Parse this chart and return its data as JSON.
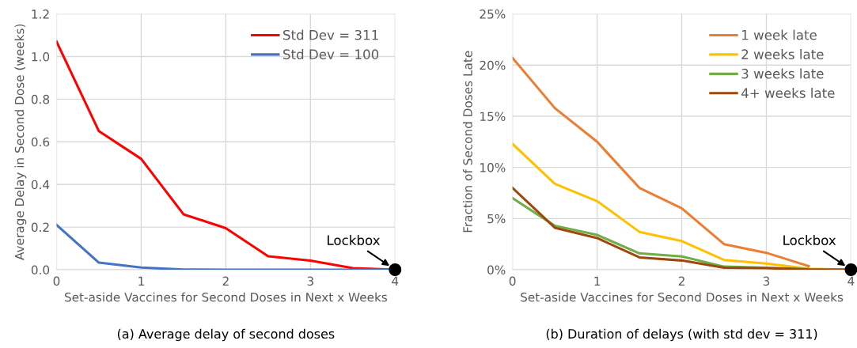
{
  "chart_data": [
    {
      "type": "line",
      "xlabel": "Set-aside Vaccines for Second Doses in Next x Weeks",
      "ylabel": "Average Delay in Second Dose (weeks)",
      "x": [
        0,
        0.5,
        1,
        1.5,
        2,
        2.5,
        3,
        3.5,
        4
      ],
      "series": [
        {
          "name": "Std Dev = 311",
          "color": "#ff0000",
          "values": [
            1.07,
            0.65,
            0.52,
            0.26,
            0.195,
            0.063,
            0.043,
            0.007,
            0.0
          ]
        },
        {
          "name": "Std Dev = 100",
          "color": "#4472c4",
          "values": [
            0.21,
            0.033,
            0.01,
            0.001,
            0.0,
            0.0,
            0.0,
            0.0,
            0.0
          ]
        },
        {
          "type": "scatter",
          "color": "#000000",
          "x": [
            4
          ],
          "values": [
            0.0
          ]
        }
      ],
      "xlim": [
        0,
        4
      ],
      "xticks": [
        0,
        1,
        2,
        3,
        4
      ],
      "ylim": [
        0,
        1.2
      ],
      "yticks": [
        {
          "value": 0,
          "label": "0.0"
        },
        0.2,
        0.4,
        0.6,
        0.8,
        {
          "value": 1,
          "label": "1.0"
        },
        1.2
      ],
      "grid": true,
      "legend": "top right",
      "line_style": "solid",
      "annotations": [
        {
          "text": "Lockbox",
          "x": 4,
          "y": 0
        },
        "(a) Average delay of second doses"
      ]
    },
    {
      "type": "line",
      "xlabel": "Set-aside Vaccines for Second Doses in Next x Weeks",
      "ylabel": "Fraction of Second Doses Late",
      "x": [
        0,
        0.5,
        1,
        1.5,
        2,
        2.5,
        3,
        3.5,
        4
      ],
      "series": [
        {
          "name": "1 week late",
          "color": "#ed7d31",
          "values": [
            20.7,
            15.8,
            12.5,
            8.0,
            6.0,
            2.5,
            1.65,
            0.35,
            null
          ]
        },
        {
          "name": "2 weeks late",
          "color": "#ffc000",
          "values": [
            12.3,
            8.4,
            6.7,
            3.7,
            2.8,
            0.95,
            0.6,
            0.1,
            0.0
          ]
        },
        {
          "name": "3 weeks late",
          "color": "#70ad47",
          "values": [
            7.0,
            4.3,
            3.4,
            1.6,
            1.3,
            0.3,
            0.2,
            0.05,
            0.0
          ]
        },
        {
          "name": "4+ weeks late",
          "color": "#9e480e",
          "values": [
            8.0,
            4.1,
            3.1,
            1.2,
            0.9,
            0.2,
            0.15,
            0.02,
            0.0
          ]
        },
        {
          "type": "scatter",
          "color": "#000000",
          "x": [
            4
          ],
          "values": [
            0.0
          ]
        }
      ],
      "xlim": [
        0,
        4
      ],
      "xticks": [
        0,
        1,
        2,
        3,
        4
      ],
      "ylim": [
        0,
        25
      ],
      "yticks": [
        {
          "value": 0,
          "label": "0%"
        },
        {
          "value": 5,
          "label": "5%"
        },
        {
          "value": 10,
          "label": "10%"
        },
        {
          "value": 15,
          "label": "15%"
        },
        {
          "value": 20,
          "label": "20%"
        },
        {
          "value": 25,
          "label": "25%"
        }
      ],
      "grid": true,
      "legend": "top right",
      "line_style": "solid",
      "annotations": [
        {
          "text": "Lockbox",
          "x": 4,
          "y": 0
        },
        "(b) Duration of delays (with std dev = 311)"
      ]
    }
  ]
}
